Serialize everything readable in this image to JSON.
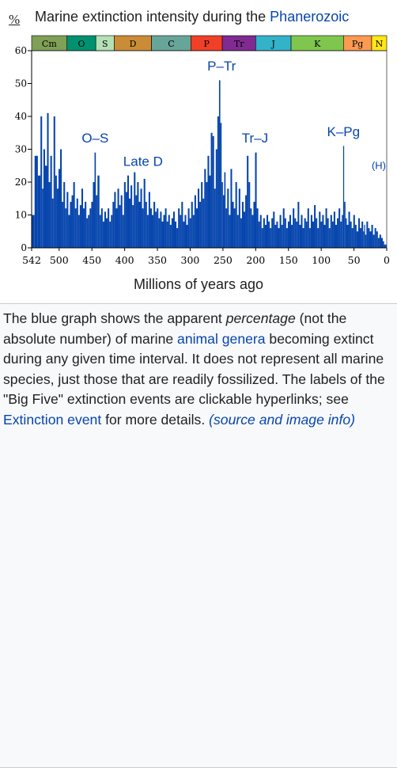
{
  "chart_data": {
    "type": "bar",
    "title_prefix": "Marine extinction intensity during the ",
    "title_link": "Phanerozoic",
    "ylabel": "%",
    "xlabel": "Millions of years ago",
    "xlim": [
      542,
      0
    ],
    "ylim": [
      0,
      60
    ],
    "x_ticks": [
      542,
      500,
      450,
      400,
      350,
      300,
      250,
      200,
      150,
      100,
      50,
      0
    ],
    "y_ticks": [
      0,
      10,
      20,
      30,
      40,
      50,
      60
    ],
    "periods": [
      {
        "label": "Cm",
        "start": 542,
        "end": 488,
        "color": "#7fa056"
      },
      {
        "label": "O",
        "start": 488,
        "end": 444,
        "color": "#009270"
      },
      {
        "label": "S",
        "start": 444,
        "end": 416,
        "color": "#b3e1b6"
      },
      {
        "label": "D",
        "start": 416,
        "end": 359,
        "color": "#cb8c37"
      },
      {
        "label": "C",
        "start": 359,
        "end": 299,
        "color": "#67a599"
      },
      {
        "label": "P",
        "start": 299,
        "end": 251,
        "color": "#f04028"
      },
      {
        "label": "Tr",
        "start": 251,
        "end": 200,
        "color": "#812b92"
      },
      {
        "label": "J",
        "start": 200,
        "end": 146,
        "color": "#34b2c9"
      },
      {
        "label": "K",
        "start": 146,
        "end": 66,
        "color": "#7fc64e"
      },
      {
        "label": "Pg",
        "start": 66,
        "end": 23,
        "color": "#fd9a52"
      },
      {
        "label": "N",
        "start": 23,
        "end": 0,
        "color": "#ffe619"
      }
    ],
    "series": [
      {
        "color": "#0645ad",
        "x": [
          540,
          535,
          530,
          527,
          525,
          523,
          520,
          517,
          515,
          512,
          510,
          507,
          505,
          502,
          500,
          497,
          495,
          492,
          490,
          487,
          485,
          482,
          480,
          477,
          475,
          472,
          470,
          467,
          465,
          462,
          460,
          457,
          455,
          452,
          450,
          447,
          445,
          443,
          440,
          437,
          435,
          432,
          430,
          427,
          425,
          422,
          420,
          417,
          415,
          412,
          410,
          407,
          405,
          402,
          400,
          397,
          395,
          392,
          390,
          387,
          385,
          382,
          380,
          377,
          375,
          372,
          370,
          367,
          365,
          362,
          360,
          357,
          355,
          352,
          350,
          347,
          345,
          342,
          340,
          337,
          335,
          332,
          330,
          327,
          325,
          322,
          320,
          317,
          315,
          312,
          310,
          307,
          305,
          302,
          300,
          297,
          295,
          292,
          290,
          287,
          285,
          282,
          280,
          277,
          275,
          272,
          270,
          267,
          265,
          262,
          260,
          257,
          255,
          253,
          251,
          249,
          247,
          245,
          242,
          240,
          237,
          235,
          232,
          230,
          227,
          225,
          222,
          220,
          217,
          215,
          212,
          210,
          207,
          205,
          202,
          200,
          197,
          195,
          192,
          190,
          187,
          185,
          182,
          180,
          177,
          175,
          172,
          170,
          167,
          165,
          162,
          160,
          157,
          155,
          152,
          150,
          147,
          145,
          142,
          140,
          137,
          135,
          132,
          130,
          127,
          125,
          122,
          120,
          117,
          115,
          112,
          110,
          107,
          105,
          102,
          100,
          97,
          95,
          92,
          90,
          87,
          85,
          82,
          80,
          77,
          75,
          72,
          70,
          67,
          66,
          64,
          62,
          60,
          57,
          55,
          52,
          50,
          47,
          45,
          42,
          40,
          37,
          35,
          34,
          32,
          30,
          27,
          25,
          22,
          20,
          17,
          15,
          12,
          10,
          7,
          5,
          3,
          1
        ],
        "values": [
          10,
          28,
          22,
          40,
          18,
          30,
          25,
          41,
          20,
          28,
          15,
          40,
          22,
          18,
          24,
          30,
          14,
          20,
          12,
          17,
          10,
          14,
          16,
          20,
          12,
          15,
          10,
          13,
          18,
          12,
          14,
          9,
          10,
          12,
          14,
          20,
          29,
          16,
          22,
          10,
          12,
          8,
          11,
          9,
          12,
          8,
          10,
          14,
          17,
          12,
          18,
          13,
          16,
          10,
          20,
          17,
          22,
          15,
          19,
          13,
          23,
          16,
          20,
          14,
          18,
          12,
          21,
          14,
          10,
          17,
          12,
          10,
          14,
          11,
          12,
          9,
          11,
          8,
          10,
          12,
          8,
          10,
          7,
          9,
          11,
          8,
          6,
          12,
          10,
          14,
          8,
          10,
          7,
          12,
          9,
          14,
          10,
          16,
          12,
          18,
          14,
          20,
          15,
          24,
          20,
          28,
          22,
          35,
          34,
          18,
          30,
          40,
          51,
          38,
          20,
          16,
          23,
          12,
          18,
          10,
          24,
          14,
          12,
          20,
          10,
          18,
          9,
          14,
          11,
          16,
          28,
          20,
          12,
          10,
          14,
          29,
          12,
          8,
          10,
          6,
          9,
          7,
          10,
          8,
          6,
          9,
          11,
          7,
          8,
          6,
          10,
          7,
          12,
          9,
          6,
          8,
          10,
          7,
          12,
          9,
          8,
          14,
          7,
          10,
          6,
          9,
          8,
          12,
          6,
          10,
          8,
          13,
          9,
          6,
          11,
          8,
          10,
          7,
          12,
          9,
          6,
          10,
          8,
          11,
          7,
          9,
          12,
          8,
          10,
          31,
          14,
          9,
          7,
          11,
          8,
          6,
          10,
          7,
          5,
          9,
          6,
          8,
          5,
          7,
          4,
          8,
          6,
          5,
          7,
          4,
          6,
          5,
          3,
          4,
          3,
          2,
          1,
          1
        ]
      }
    ],
    "annotations": [
      {
        "text": "O–S",
        "x": 445,
        "y": 32
      },
      {
        "text": "Late D",
        "x": 372,
        "y": 25
      },
      {
        "text": "P–Tr",
        "x": 252,
        "y": 54
      },
      {
        "text": "Tr–J",
        "x": 201,
        "y": 32
      },
      {
        "text": "K–Pg",
        "x": 66,
        "y": 34
      },
      {
        "text": "(H)",
        "x": 6,
        "y": 24
      }
    ],
    "annotation_color": "#0645ad",
    "text_color": "#000000"
  },
  "caption": {
    "part1": "The blue graph shows the apparent ",
    "emph": "percentage",
    "part2": " (not the absolute number) of marine ",
    "link1": "animal genera",
    "part3": " becoming extinct during any given time interval. It does not represent all marine species, just those that are readily fossilized. The labels of the \"Big Five\" extinction events are clickable hyperlinks; see ",
    "link2": "Extinction event",
    "part4": " for more details. ",
    "link3": "(source and image info)"
  }
}
